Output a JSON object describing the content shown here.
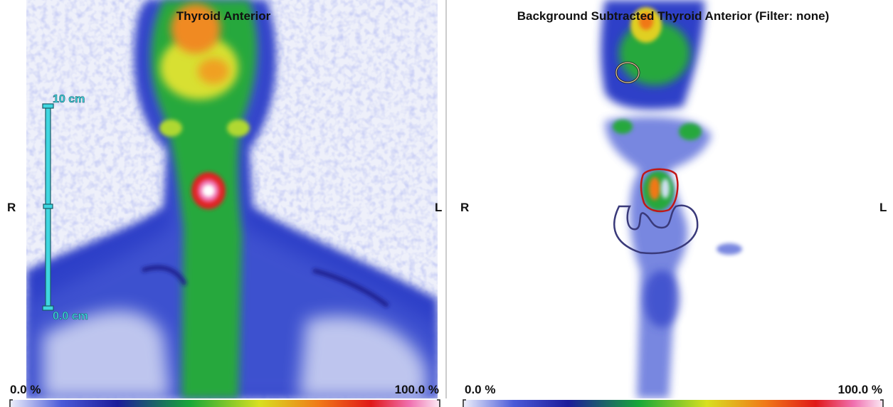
{
  "panels": [
    {
      "title": "Thyroid Anterior",
      "side_right": "R",
      "side_left": "L",
      "scale": {
        "top": "10 cm",
        "bottom": "0.0 cm"
      },
      "colorbar": {
        "min": "0.0 %",
        "max": "100.0 %"
      }
    },
    {
      "title": "Background Subtracted Thyroid Anterior (Filter: none)",
      "side_right": "R",
      "side_left": "L",
      "colorbar": {
        "min": "0.0 %",
        "max": "100.0 %"
      }
    }
  ]
}
